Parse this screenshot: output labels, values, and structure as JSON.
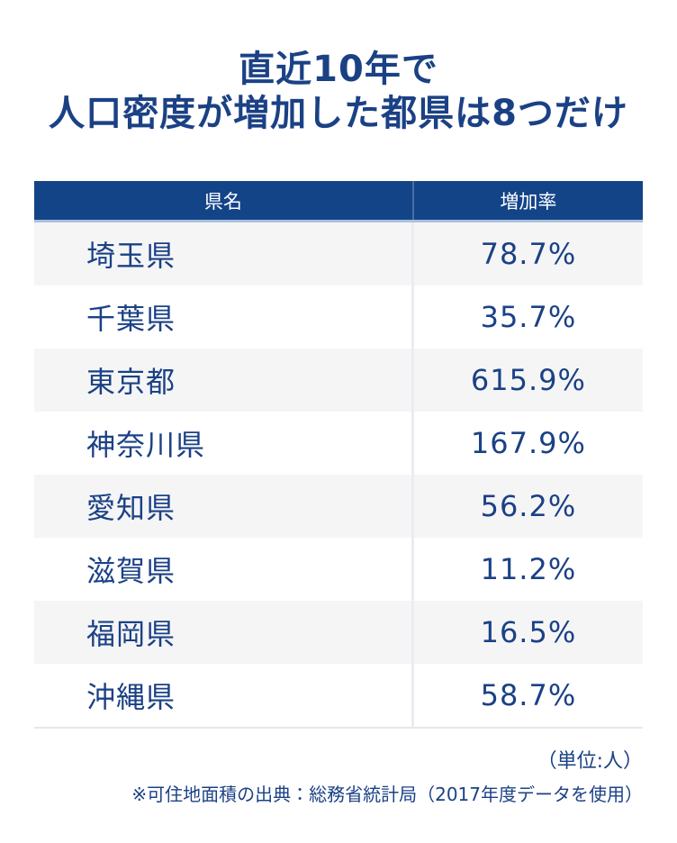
{
  "title": {
    "line1": "直近10年で",
    "line2": "人口密度が増加した都県は8つだけ"
  },
  "table": {
    "headers": {
      "name": "県名",
      "rate": "増加率"
    },
    "rows": [
      {
        "prefecture": "埼玉県",
        "rate": "78.7%"
      },
      {
        "prefecture": "千葉県",
        "rate": "35.7%"
      },
      {
        "prefecture": "東京都",
        "rate": "615.9%"
      },
      {
        "prefecture": "神奈川県",
        "rate": "167.9%"
      },
      {
        "prefecture": "愛知県",
        "rate": "56.2%"
      },
      {
        "prefecture": "滋賀県",
        "rate": "11.2%"
      },
      {
        "prefecture": "福岡県",
        "rate": "16.5%"
      },
      {
        "prefecture": "沖縄県",
        "rate": "58.7%"
      }
    ]
  },
  "footer": {
    "unit_note": "（単位:人）",
    "source_note": "※可住地面積の出典：総務省統計局（2017年度データを使用）"
  },
  "colors": {
    "header_bg": "#134488",
    "header_text": "#ffffff",
    "header_underline": "#abc0db",
    "header_divider": "#4a6da3",
    "body_text": "#1b4185",
    "row_alt_bg": "#f5f5f6",
    "row_bg": "#ffffff",
    "body_divider": "#e9ecf0",
    "table_bottom_border": "#e8e8eb"
  },
  "chart_data": {
    "type": "table",
    "title": "直近10年で人口密度が増加した都県は8つだけ",
    "columns": [
      "県名",
      "増加率"
    ],
    "rows": [
      [
        "埼玉県",
        "78.7%"
      ],
      [
        "千葉県",
        "35.7%"
      ],
      [
        "東京都",
        "615.9%"
      ],
      [
        "神奈川県",
        "167.9%"
      ],
      [
        "愛知県",
        "56.2%"
      ],
      [
        "滋賀県",
        "11.2%"
      ],
      [
        "福岡県",
        "16.5%"
      ],
      [
        "沖縄県",
        "58.7%"
      ]
    ],
    "notes": [
      "（単位:人）",
      "※可住地面積の出典：総務省統計局（2017年度データを使用）"
    ],
    "layout_hints": {
      "header_style": "navy background, white centered text",
      "row_striping": "odd rows light gray #f5f5f6, even rows white",
      "name_column_align": "left",
      "rate_column_align": "center"
    }
  }
}
